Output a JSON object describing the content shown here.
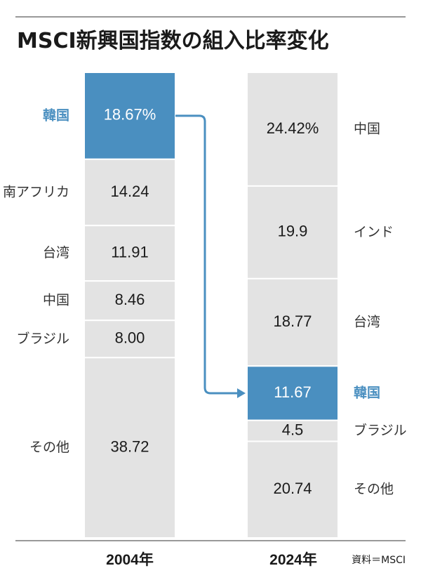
{
  "title": "MSCI新興国指数の組入比率変化",
  "source": "資料＝MSCI",
  "colors": {
    "highlight": "#4a8fc0",
    "bar": "#e3e3e3",
    "divider": "#ffffff",
    "arrow": "#4a8fc0",
    "rule": "#999999"
  },
  "chart_data": {
    "type": "bar",
    "stacked": true,
    "unit": "%",
    "ylim": [
      0,
      100
    ],
    "categories": [
      "2004年",
      "2024年"
    ],
    "highlight": "韓国",
    "annotation": "arrow from 2004 韓国 to 2024 韓国",
    "stacks": [
      {
        "year": "2004年",
        "segments": [
          {
            "name": "韓国",
            "value": 18.67,
            "label": "18.67%"
          },
          {
            "name": "南アフリカ",
            "value": 14.24,
            "label": "14.24"
          },
          {
            "name": "台湾",
            "value": 11.91,
            "label": "11.91"
          },
          {
            "name": "中国",
            "value": 8.46,
            "label": "8.46"
          },
          {
            "name": "ブラジル",
            "value": 8.0,
            "label": "8.00"
          },
          {
            "name": "その他",
            "value": 38.72,
            "label": "38.72"
          }
        ]
      },
      {
        "year": "2024年",
        "segments": [
          {
            "name": "中国",
            "value": 24.42,
            "label": "24.42%"
          },
          {
            "name": "インド",
            "value": 19.9,
            "label": "19.9"
          },
          {
            "name": "台湾",
            "value": 18.77,
            "label": "18.77"
          },
          {
            "name": "韓国",
            "value": 11.67,
            "label": "11.67"
          },
          {
            "name": "ブラジル",
            "value": 4.5,
            "label": "4.5"
          },
          {
            "name": "その他",
            "value": 20.74,
            "label": "20.74"
          }
        ]
      }
    ]
  }
}
